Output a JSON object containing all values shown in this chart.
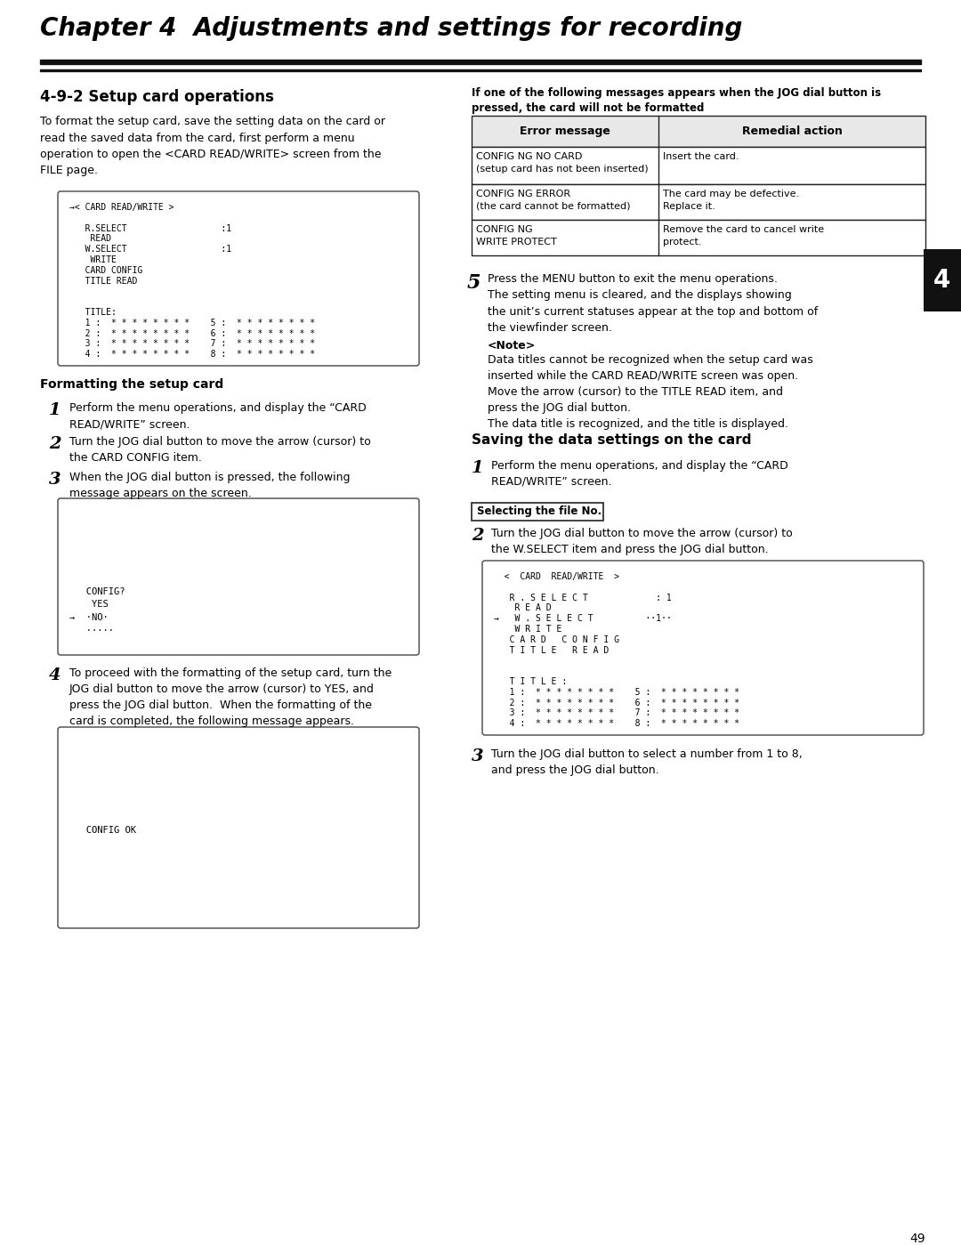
{
  "page_bg": "#ffffff",
  "chapter_title": "Chapter 4  Adjustments and settings for recording",
  "section_title": "4-9-2 Setup card operations",
  "intro_text": "To format the setup card, save the setting data on the card or\nread the saved data from the card, first perform a menu\noperation to open the <CARD READ/WRITE> screen from the\nFILE page.",
  "screen1_lines": [
    "→< CARD READ/WRITE >",
    "",
    "   R.SELECT                  :1",
    "    READ",
    "   W.SELECT                  :1",
    "    WRITE",
    "   CARD CONFIG",
    "   TITLE READ",
    "",
    "",
    "   TITLE:",
    "   1 :  * * * * * * * *    5 :  * * * * * * * *",
    "   2 :  * * * * * * * *    6 :  * * * * * * * *",
    "   3 :  * * * * * * * *    7 :  * * * * * * * *",
    "   4 :  * * * * * * * *    8 :  * * * * * * * *"
  ],
  "format_section_title": "Formatting the setup card",
  "format_step1": "Perform the menu operations, and display the “CARD\nREAD/WRITE” screen.",
  "format_step2": "Turn the JOG dial button to move the arrow (cursor) to\nthe CARD CONFIG item.",
  "format_step3": "When the JOG dial button is pressed, the following\nmessage appears on the screen.",
  "screen2_lines": [
    "",
    "",
    "",
    "",
    "",
    "",
    "   CONFIG?",
    "    YES",
    "→  ·NO·",
    "   ·····"
  ],
  "format_step4": "To proceed with the formatting of the setup card, turn the\nJOG dial button to move the arrow (cursor) to YES, and\npress the JOG dial button.  When the formatting of the\ncard is completed, the following message appears.",
  "screen3_lines": [
    "",
    "",
    "",
    "",
    "",
    "",
    "",
    "   CONFIG OK"
  ],
  "right_header": "If one of the following messages appears when the JOG dial button is\npressed, the card will not be formatted",
  "table_headers": [
    "Error message",
    "Remedial action"
  ],
  "table_rows": [
    [
      "CONFIG NG NO CARD\n(setup card has not been inserted)",
      "Insert the card."
    ],
    [
      "CONFIG NG ERROR\n(the card cannot be formatted)",
      "The card may be defective.\nReplace it."
    ],
    [
      "CONFIG NG\nWRITE PROTECT",
      "Remove the card to cancel write\nprotect."
    ]
  ],
  "step5_text": "Press the MENU button to exit the menu operations.\nThe setting menu is cleared, and the displays showing\nthe unit’s current statuses appear at the top and bottom of\nthe viewfinder screen.",
  "note_title": "<Note>",
  "note_text": "Data titles cannot be recognized when the setup card was\ninserted while the CARD READ/WRITE screen was open.\nMove the arrow (cursor) to the TITLE READ item, and\npress the JOG dial button.\nThe data title is recognized, and the title is displayed.",
  "save_section_title": "Saving the data settings on the card",
  "save_step1": "Perform the menu operations, and display the “CARD\nREAD/WRITE” screen.",
  "select_file_label": "Selecting the file No.",
  "save_step2": "Turn the JOG dial button to move the arrow (cursor) to\nthe W.SELECT item and press the JOG dial button.",
  "screen4_lines": [
    "  <  CARD  READ/WRITE  >",
    "",
    "   R . S E L E C T             : 1",
    "    R E A D",
    "→   W . S E L E C T          ··1··",
    "    W R I T E",
    "   C A R D   C O N F I G",
    "   T I T L E   R E A D",
    "",
    "",
    "   T I T L E :",
    "   1 :  * * * * * * * *    5 :  * * * * * * * *",
    "   2 :  * * * * * * * *    6 :  * * * * * * * *",
    "   3 :  * * * * * * * *    7 :  * * * * * * * *",
    "   4 :  * * * * * * * *    8 :  * * * * * * * *"
  ],
  "save_step3": "Turn the JOG dial button to select a number from 1 to 8,\nand press the JOG dial button.",
  "page_number": "49",
  "tab_number": "4"
}
